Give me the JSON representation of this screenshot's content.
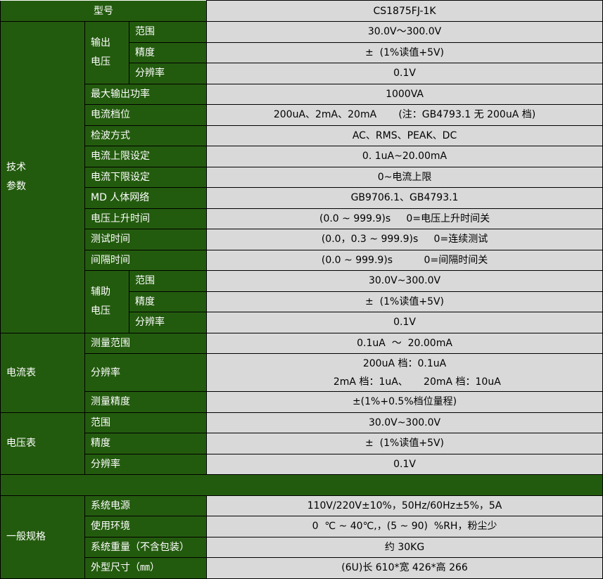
{
  "header": {
    "label": "型号",
    "value": "CS1875FJ-1K"
  },
  "tech": {
    "label": "技术\n参数",
    "output_voltage": {
      "label": "输出\n电压",
      "range": "范围",
      "range_value": "30.0V～300.0V",
      "accuracy": "精度",
      "accuracy_value": "±  (1%读值+5V)",
      "resolution": "分辨率",
      "resolution_value": "0.1V"
    },
    "rows": [
      {
        "label": "最大输出功率",
        "value": "1000VA"
      },
      {
        "label": "电流档位",
        "value": "200uA、2mA、20mA       (注：GB4793.1 无 200uA 档)"
      },
      {
        "label": "检波方式",
        "value": "AC、RMS、PEAK、DC"
      },
      {
        "label": "电流上限设定",
        "value": "0. 1uA~20.00mA"
      },
      {
        "label": "电流下限设定",
        "value": "0~电流上限"
      },
      {
        "label": "MD 人体网络",
        "value": "GB9706.1、GB4793.1"
      },
      {
        "label": "电压上升时间",
        "value": "(0.0 ~ 999.9)s     0=电压上升时间关"
      },
      {
        "label": "测试时间",
        "value": "(0.0，0.3 ~ 999.9)s     0=连续测试"
      },
      {
        "label": "间隔时间",
        "value": "(0.0 ~ 999.9)s          0=间隔时间关"
      }
    ],
    "aux_voltage": {
      "label": "辅助\n电压",
      "range": "范围",
      "range_value": "30.0V~300.0V",
      "accuracy": "精度",
      "accuracy_value": "±  (1%读值+5V)",
      "resolution": "分辨率",
      "resolution_value": "0.1V"
    }
  },
  "ammeter": {
    "label": "电流表",
    "range": "测量范围",
    "range_value": "0.1uA  ～  20.00mA",
    "resolution": "分辨率",
    "resolution_line1": "200uA 档：0.1uA",
    "resolution_line2": "        2mA 档：1uA、     20mA 档：10uA",
    "accuracy": "测量精度",
    "accuracy_value": "±(1%+0.5%档位量程)"
  },
  "voltmeter": {
    "label": "电压表",
    "range": "范围",
    "range_value": "30.0V~300.0V",
    "accuracy": "精度",
    "accuracy_value": "±  (1%读值+5V)",
    "resolution": "分辨率",
    "resolution_value": "0.1V"
  },
  "general": {
    "label": "一般规格",
    "rows": [
      {
        "label": "系统电源",
        "value": "110V/220V±10%，50Hz/60Hz±5%，5A"
      },
      {
        "label": "使用环境",
        "value": "0  ℃ ~ 40℃,，(5 ~ 90)  %RH，粉尘少"
      },
      {
        "label": "系统重量（不含包装）",
        "value": "约 30KG"
      },
      {
        "label": "外型尺寸（㎜）",
        "value": "(6U)长 610*宽 426*高 266"
      }
    ]
  },
  "colors": {
    "label_bg": "#235B0E",
    "value_bg": "#D9D9D9"
  }
}
